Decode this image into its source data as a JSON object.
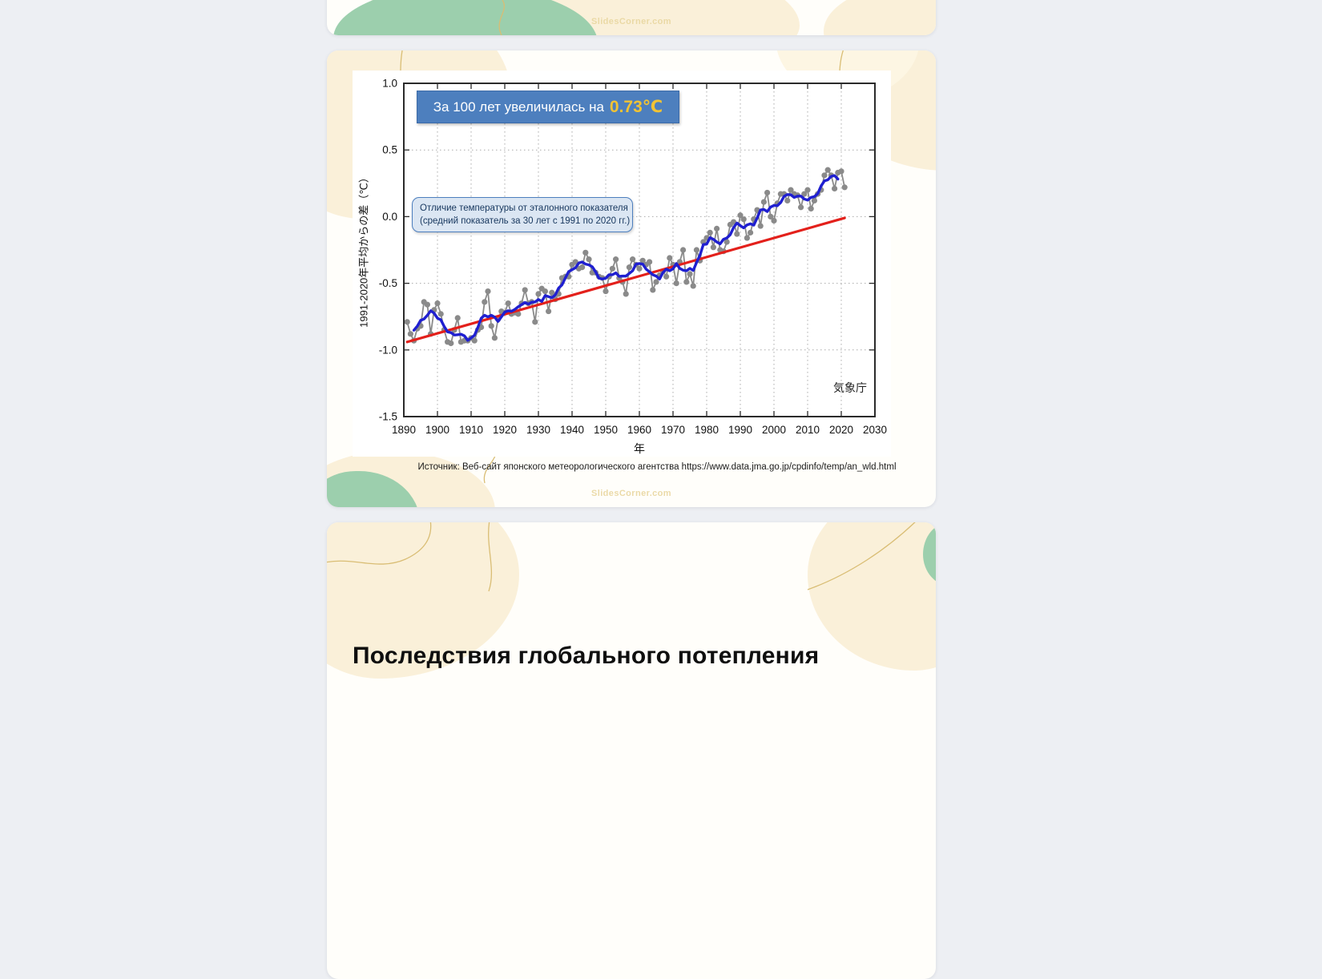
{
  "slides": {
    "watermark": "SlidesCorner.com"
  },
  "slide": {
    "headline": {
      "text": "За 100 лет увеличилась на",
      "value": "0.73℃"
    },
    "annotation": {
      "line1": "Отличие температуры от эталонного показателя",
      "line2": "(средний показатель за 30 лет с 1991 по 2020 гг.)"
    },
    "agency": "気象庁",
    "source": "Источник: Веб-сайт японского метеорологического агентства https://www.data.jma.go.jp/cpdinfo/temp/an_wld.html"
  },
  "next_slide": {
    "heading": "Последствия глобального потепления"
  },
  "chart_data": {
    "type": "line",
    "title": "За 100 лет увеличилась на 0.73℃",
    "xlabel": "年",
    "ylabel": "1991-2020年平均からの差（℃）",
    "xlim": [
      1890,
      2030
    ],
    "ylim": [
      -1.5,
      1.0
    ],
    "x_ticks": [
      1890,
      1900,
      1910,
      1920,
      1930,
      1940,
      1950,
      1960,
      1970,
      1980,
      1990,
      2000,
      2010,
      2020,
      2030
    ],
    "y_ticks": [
      1.0,
      0.5,
      0.0,
      -0.5,
      -1.0,
      -1.5
    ],
    "y_tick_labels": [
      "1.0",
      "0.5",
      "0.0",
      "-0.5",
      "-1.0",
      "-1.5"
    ],
    "grid": true,
    "legend": false,
    "colors": {
      "grid": "#aaaaaa",
      "frame": "#2b2b2b"
    },
    "series": [
      {
        "name": "annual-temperature-anomaly",
        "style": "dots+line",
        "color": "#8a8a8a",
        "start_year": 1891,
        "values": [
          -0.79,
          -0.88,
          -0.93,
          -0.84,
          -0.82,
          -0.64,
          -0.66,
          -0.88,
          -0.7,
          -0.65,
          -0.73,
          -0.85,
          -0.94,
          -0.95,
          -0.85,
          -0.76,
          -0.94,
          -0.93,
          -0.93,
          -0.91,
          -0.93,
          -0.85,
          -0.83,
          -0.64,
          -0.56,
          -0.82,
          -0.91,
          -0.77,
          -0.71,
          -0.72,
          -0.65,
          -0.73,
          -0.72,
          -0.73,
          -0.65,
          -0.55,
          -0.65,
          -0.64,
          -0.79,
          -0.58,
          -0.54,
          -0.56,
          -0.71,
          -0.57,
          -0.62,
          -0.58,
          -0.46,
          -0.45,
          -0.45,
          -0.36,
          -0.34,
          -0.39,
          -0.38,
          -0.27,
          -0.32,
          -0.42,
          -0.42,
          -0.45,
          -0.46,
          -0.56,
          -0.45,
          -0.39,
          -0.32,
          -0.46,
          -0.49,
          -0.58,
          -0.38,
          -0.32,
          -0.36,
          -0.39,
          -0.33,
          -0.36,
          -0.34,
          -0.55,
          -0.49,
          -0.44,
          -0.41,
          -0.45,
          -0.31,
          -0.36,
          -0.5,
          -0.34,
          -0.25,
          -0.49,
          -0.43,
          -0.52,
          -0.25,
          -0.33,
          -0.19,
          -0.16,
          -0.12,
          -0.23,
          -0.09,
          -0.25,
          -0.26,
          -0.19,
          -0.06,
          -0.04,
          -0.13,
          0.01,
          -0.02,
          -0.16,
          -0.12,
          -0.02,
          0.05,
          -0.07,
          0.11,
          0.18,
          0.0,
          -0.03,
          0.1,
          0.17,
          0.17,
          0.12,
          0.2,
          0.17,
          0.16,
          0.07,
          0.17,
          0.2,
          0.06,
          0.12,
          0.17,
          0.2,
          0.31,
          0.35,
          0.31,
          0.21,
          0.33,
          0.34,
          0.22
        ]
      },
      {
        "name": "five-year-running-mean",
        "style": "line",
        "color": "#1f1fd0",
        "derived": "5-year centered moving average of annual-temperature-anomaly",
        "window": 5
      },
      {
        "name": "linear-trend-0.73C-per-100yr",
        "style": "line",
        "color": "#e3201b",
        "x": [
          1891,
          2021
        ],
        "y": [
          -0.94,
          -0.01
        ]
      }
    ]
  }
}
